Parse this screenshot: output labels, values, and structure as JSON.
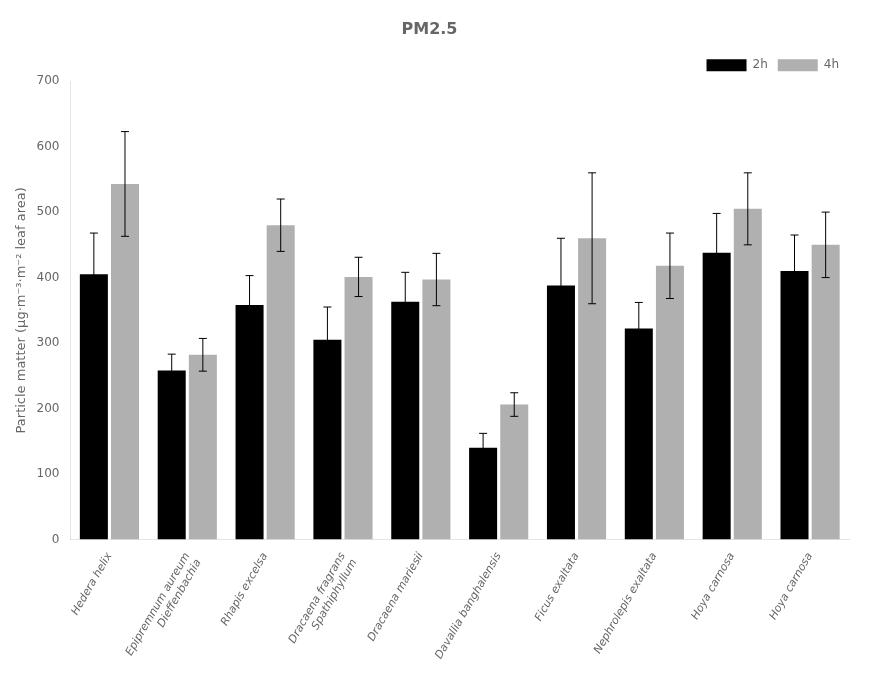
{
  "chart_data": {
    "type": "bar",
    "title": "PM2.5",
    "y_label": "Particle matter (μg·m⁻³·m⁻² leaf area)",
    "categories": [
      "Hedera helix",
      "Epipremnum aureum\nDieffenbachia",
      "Rhapis excelsa",
      "Dracaena fragrans\nSpathiphyllum",
      "Dracaena mariesii",
      "Davallia banghalensis",
      "Ficus exaltata",
      "Nephrolepis exaltata",
      "Hoya carnosa",
      "Hoya carnosa"
    ],
    "series": [
      {
        "name": "2h",
        "color": "#000000",
        "values": [
          405,
          258,
          358,
          305,
          363,
          140,
          388,
          322,
          438,
          410
        ],
        "errors": [
          63,
          25,
          45,
          50,
          45,
          22,
          72,
          40,
          60,
          55
        ]
      },
      {
        "name": "4h",
        "color": "#b0b0b0",
        "values": [
          543,
          282,
          480,
          401,
          397,
          206,
          460,
          418,
          505,
          450
        ],
        "errors": [
          80,
          25,
          40,
          30,
          40,
          18,
          100,
          50,
          55,
          50
        ]
      }
    ],
    "ylim": [
      0,
      700
    ],
    "yticks": [
      0,
      100,
      200,
      300,
      400,
      500,
      600,
      700
    ],
    "grid": false,
    "legend": "upper right"
  }
}
